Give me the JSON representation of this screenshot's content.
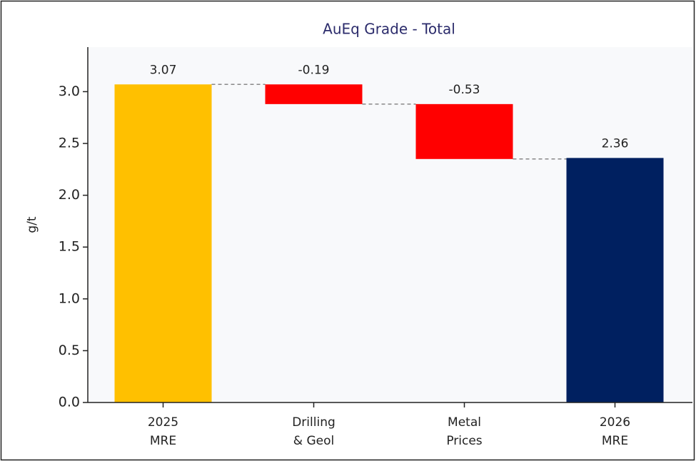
{
  "chart_data": {
    "type": "waterfall",
    "title": "AuEq Grade - Total",
    "ylabel": "g/t",
    "categories": [
      "2025\nMRE",
      "Drilling\n& Geol",
      "Metal\nPrices",
      "2026\nMRE"
    ],
    "values": [
      3.07,
      -0.19,
      -0.53,
      2.36
    ],
    "measure": [
      "absolute",
      "relative",
      "relative",
      "total"
    ],
    "colors": [
      "#ffc000",
      "#ff0000",
      "#ff0000",
      "#002060"
    ],
    "ylim": [
      0,
      3.43
    ],
    "yticks": [
      {
        "value": 0,
        "label": "0.0"
      },
      {
        "value": 0.5,
        "label": "0.5"
      },
      {
        "value": 1,
        "label": "1.0"
      },
      {
        "value": 1.5,
        "label": "1.5"
      },
      {
        "value": 2,
        "label": "2.0"
      },
      {
        "value": 2.5,
        "label": "2.5"
      },
      {
        "value": 3,
        "label": "3.0"
      }
    ],
    "grid": false
  }
}
